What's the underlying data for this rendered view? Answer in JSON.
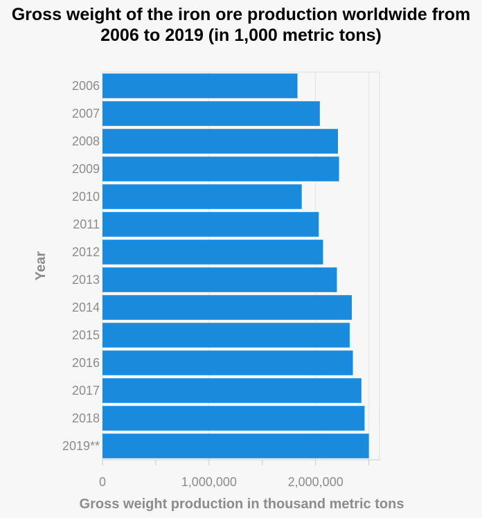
{
  "chart_data": {
    "type": "bar",
    "orientation": "horizontal",
    "title": "Gross weight of the iron ore production worldwide from 2006 to 2019 (in 1,000 metric tons)",
    "xlabel": "Gross weight production in thousand metric tons",
    "ylabel": "Year",
    "categories": [
      "2006",
      "2007",
      "2008",
      "2009",
      "2010",
      "2011",
      "2012",
      "2013",
      "2014",
      "2015",
      "2016",
      "2017",
      "2018",
      "2019**"
    ],
    "values": [
      1830000,
      2040000,
      2210000,
      2220000,
      1870000,
      2030000,
      2070000,
      2200000,
      2340000,
      2320000,
      2350000,
      2430000,
      2460000,
      2500000
    ],
    "xlim": [
      0,
      2600000
    ],
    "xticks": [
      0,
      1000000,
      2000000
    ],
    "xtick_labels": [
      "0",
      "1,000,000",
      "2,000,000"
    ],
    "bar_color": "#1a8bdc",
    "grid": true
  }
}
